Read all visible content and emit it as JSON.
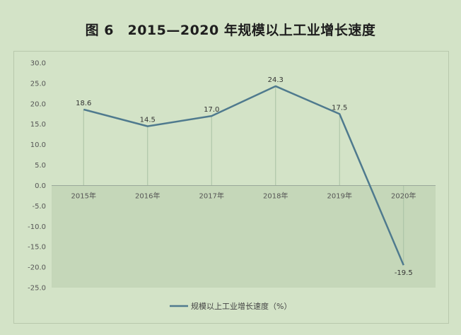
{
  "title": "图 6　2015—2020 年规模以上工业增长速度",
  "chart_data": {
    "type": "line",
    "categories": [
      "2015年",
      "2016年",
      "2017年",
      "2018年",
      "2019年",
      "2020年"
    ],
    "series": [
      {
        "name": "规模以上工业增长速度（%）",
        "values": [
          18.6,
          14.5,
          17.0,
          24.3,
          17.5,
          -19.5
        ],
        "labels": [
          "18.6",
          "14.5",
          "17.0",
          "24.3",
          "17.5",
          "-19.5"
        ],
        "color": "#4f7a8e"
      }
    ],
    "ylim": [
      -25,
      30
    ],
    "yticks": [
      "30.0",
      "25.0",
      "20.0",
      "15.0",
      "10.0",
      "5.0",
      "0.0",
      "-5.0",
      "-10.0",
      "-15.0",
      "-20.0",
      "-25.0"
    ],
    "ytick_values": [
      30,
      25,
      20,
      15,
      10,
      5,
      0,
      -5,
      -10,
      -15,
      -20,
      -25
    ],
    "legend_position": "bottom",
    "negative_region_color": "#c5d7b9",
    "dropline_color": "#a9c1a4"
  }
}
